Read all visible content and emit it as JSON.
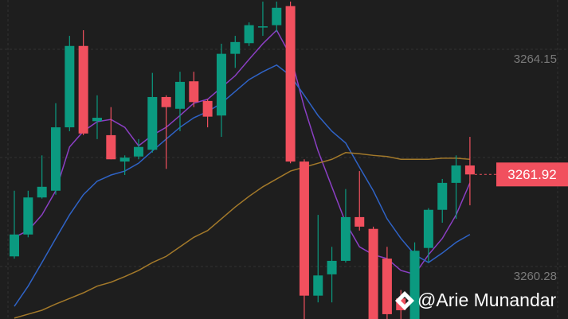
{
  "chart_data": {
    "type": "candlestick",
    "ylim": [
      3259.344,
      3265.029
    ],
    "yticks": [
      3264.15,
      3260.28
    ],
    "grid": true,
    "up_color": "#0b9a80",
    "down_color": "#f1505e",
    "open": [
      3260.46,
      3260.85,
      3261.51,
      3261.63,
      3262.76,
      3264.21,
      3262.87,
      3262.62,
      3262.15,
      3262.24,
      3262.36,
      3263.3,
      3263.09,
      3263.58,
      3263.23,
      3262.97,
      3264.07,
      3264.26,
      3264.56,
      3264.58,
      3264.92,
      3262.15,
      3259.76,
      3260.14,
      3260.38,
      3261.16,
      3260.95,
      3260.42,
      3259.71,
      3259.3,
      3260.61,
      3261.29,
      3261.77,
      3262.08
    ],
    "high": [
      3261.63,
      3261.63,
      3262.26,
      3263.19,
      3264.39,
      3264.49,
      3263.33,
      3263.12,
      3262.26,
      3262.55,
      3263.73,
      3263.33,
      3263.75,
      3263.75,
      3263.26,
      3264.25,
      3264.39,
      3264.63,
      3265.0,
      3265.0,
      3265.0,
      3262.19,
      3261.2,
      3260.63,
      3261.66,
      3261.98,
      3260.99,
      3260.63,
      3259.86,
      3260.71,
      3261.32,
      3261.84,
      3262.26,
      3262.59
    ],
    "low": [
      3260.42,
      3260.8,
      3261.49,
      3261.56,
      3262.69,
      3262.62,
      3262.55,
      3262.19,
      3261.91,
      3262.19,
      3262.31,
      3262.02,
      3262.69,
      3263.12,
      3262.76,
      3262.59,
      3263.82,
      3264.21,
      3264.39,
      3264.46,
      3262.12,
      3259.3,
      3259.64,
      3259.64,
      3260.35,
      3260.92,
      3259.3,
      3259.3,
      3259.3,
      3259.3,
      3260.35,
      3261.06,
      3261.13,
      3261.37
    ],
    "close": [
      3260.85,
      3261.51,
      3261.7,
      3262.76,
      3264.21,
      3262.65,
      3262.93,
      3262.19,
      3262.22,
      3262.41,
      3263.3,
      3263.12,
      3263.57,
      3263.21,
      3262.95,
      3264.07,
      3264.28,
      3264.58,
      3264.56,
      3264.89,
      3262.15,
      3259.76,
      3260.12,
      3260.38,
      3261.16,
      3260.99,
      3259.3,
      3259.43,
      3259.5,
      3260.56,
      3261.29,
      3261.77,
      3262.08,
      3261.92
    ],
    "series": [
      {
        "color": "#8b3fc4",
        "values": [
          3260.8,
          3260.92,
          3261.2,
          3261.63,
          3262.41,
          3262.69,
          3262.86,
          3262.9,
          3262.76,
          3262.43,
          3262.62,
          3262.76,
          3262.97,
          3263.19,
          3263.26,
          3263.47,
          3263.68,
          3263.97,
          3264.25,
          3264.49,
          3264.04,
          3263.12,
          3262.34,
          3261.7,
          3261.06,
          3260.63,
          3260.49,
          3260.42,
          3260.21,
          3260.14,
          3260.49,
          3260.78,
          3261.2,
          3261.77
        ]
      },
      {
        "color": "#2f63c6",
        "values": [
          3259.57,
          3259.93,
          3260.35,
          3260.78,
          3261.2,
          3261.56,
          3261.8,
          3261.91,
          3261.98,
          3262.12,
          3262.34,
          3262.55,
          3262.76,
          3262.93,
          3263.04,
          3263.19,
          3263.4,
          3263.61,
          3263.75,
          3263.87,
          3263.68,
          3263.33,
          3262.97,
          3262.69,
          3262.48,
          3262.05,
          3261.63,
          3261.13,
          3260.78,
          3260.49,
          3260.35,
          3260.52,
          3260.71,
          3260.85
        ]
      },
      {
        "color": "#a3792a",
        "values": [
          3259.36,
          3259.43,
          3259.5,
          3259.61,
          3259.71,
          3259.81,
          3259.93,
          3260.0,
          3260.1,
          3260.21,
          3260.35,
          3260.46,
          3260.63,
          3260.8,
          3260.92,
          3261.13,
          3261.34,
          3261.53,
          3261.7,
          3261.84,
          3261.98,
          3262.05,
          3262.12,
          3262.19,
          3262.31,
          3262.29,
          3262.26,
          3262.24,
          3262.19,
          3262.19,
          3262.19,
          3262.21,
          3262.21,
          3262.19
        ]
      }
    ],
    "last_price": 3261.92,
    "watermark": "@Arie Munandar"
  }
}
